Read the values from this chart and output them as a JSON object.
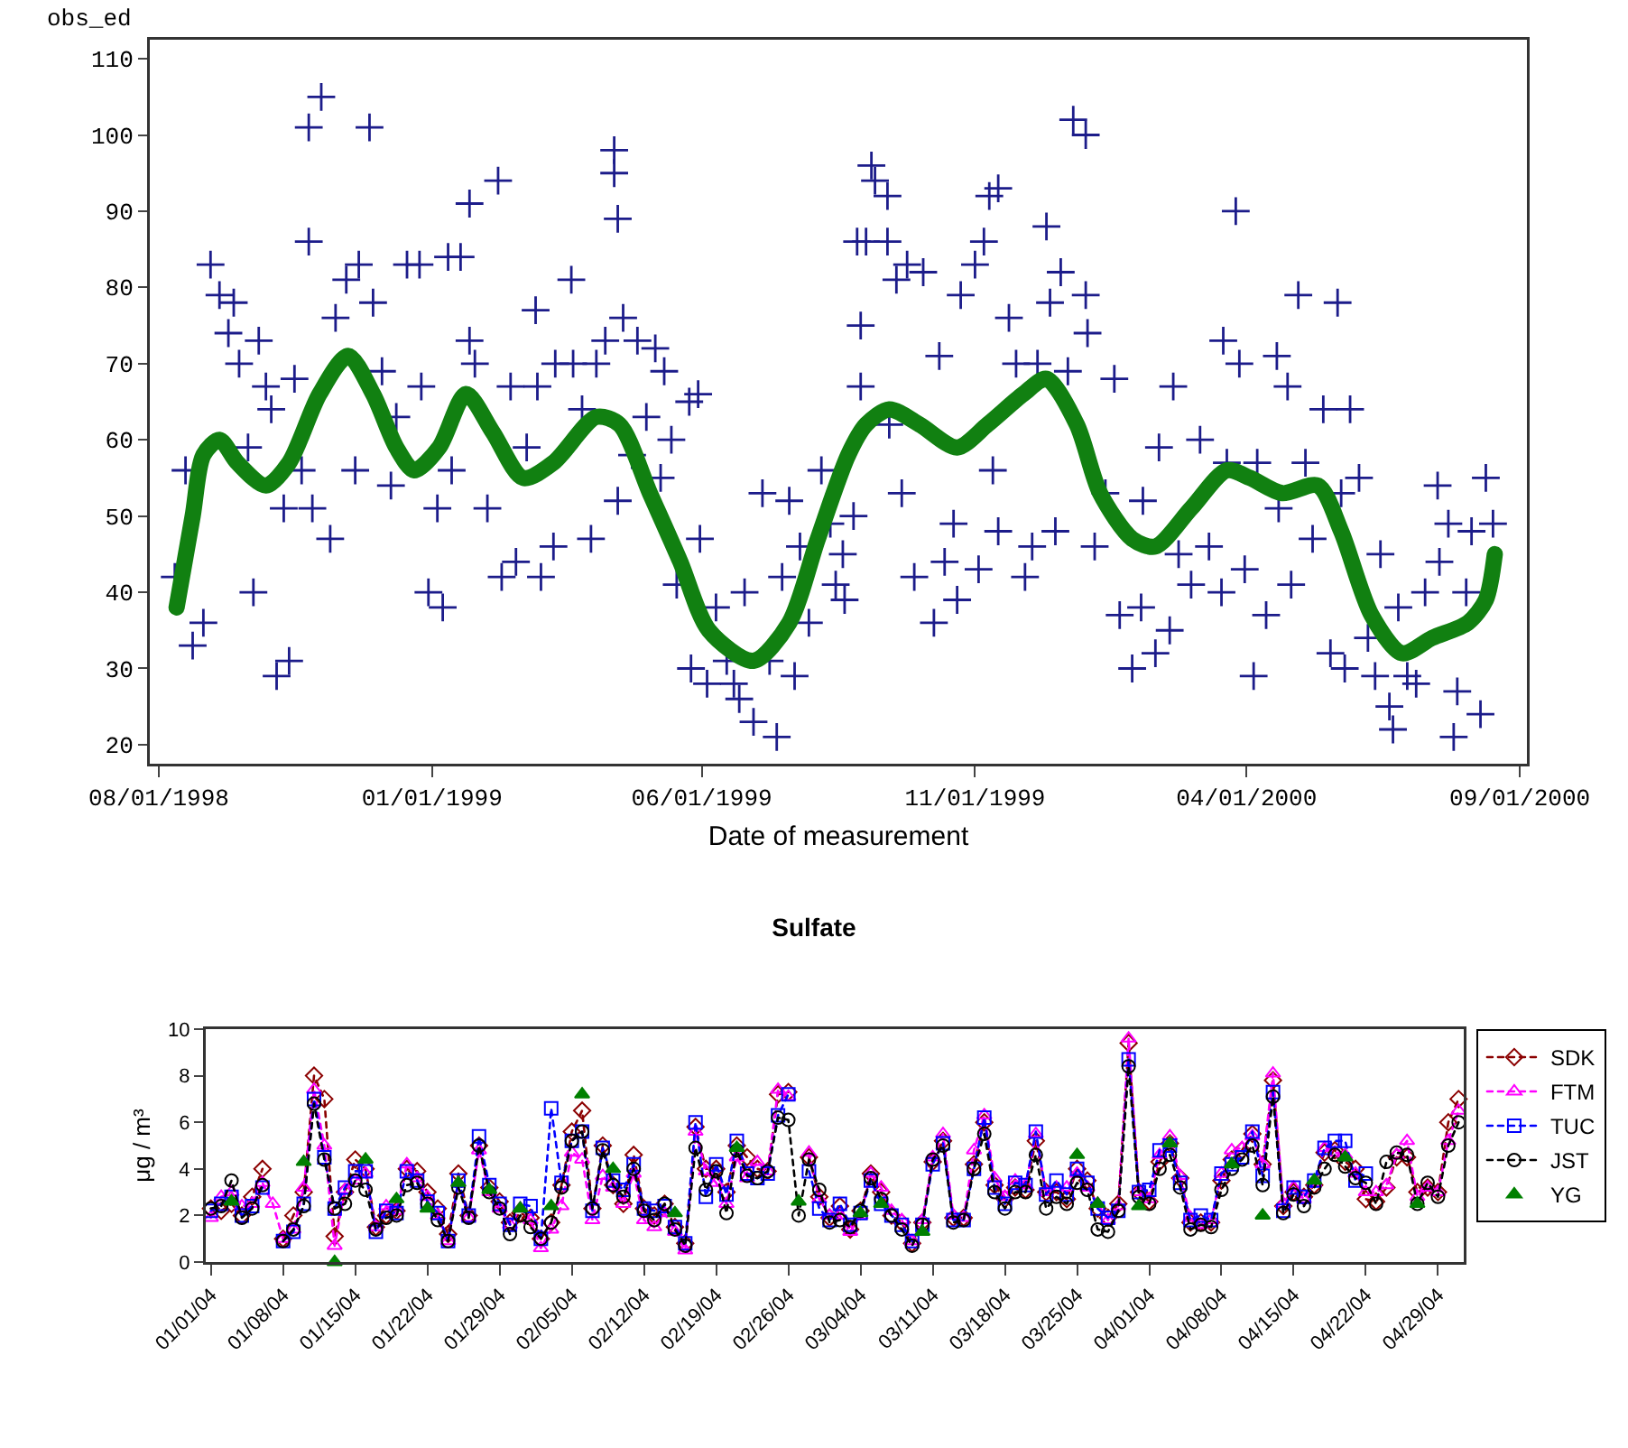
{
  "chart_data": [
    {
      "type": "scatter",
      "xlabel": "Date of measurement",
      "ylabel": "obs_ed",
      "xlim": [
        "1998-07-27",
        "2000-09-05"
      ],
      "ylim": [
        17.5,
        112.5
      ],
      "xticks": [
        {
          "value": "1998-08-01",
          "label": "08/01/1998"
        },
        {
          "value": "1999-01-01",
          "label": "01/01/1999"
        },
        {
          "value": "1999-06-01",
          "label": "06/01/1999"
        },
        {
          "value": "1999-11-01",
          "label": "11/01/1999"
        },
        {
          "value": "2000-04-01",
          "label": "04/01/2000"
        },
        {
          "value": "2000-09-01",
          "label": "09/01/2000"
        }
      ],
      "yticks": [
        20,
        30,
        40,
        50,
        60,
        70,
        80,
        90,
        100,
        110
      ],
      "grid": false,
      "legend": false,
      "series": [
        {
          "color": "#1c1c8a",
          "marker": "cross",
          "x": [
            "1998-08-10",
            "1998-08-16",
            "1998-08-20",
            "1998-08-26",
            "1998-08-30",
            "1998-09-04",
            "1998-09-09",
            "1998-09-12",
            "1998-09-15",
            "1998-09-20",
            "1998-09-23",
            "1998-09-26",
            "1998-09-30",
            "1998-10-03",
            "1998-10-06",
            "1998-10-10",
            "1998-10-13",
            "1998-10-16",
            "1998-10-20",
            "1998-10-24",
            "1998-10-24",
            "1998-10-26",
            "1998-10-31",
            "1998-11-05",
            "1998-11-08",
            "1998-11-14",
            "1998-11-19",
            "1998-11-21",
            "1998-11-27",
            "1998-11-29",
            "1998-12-04",
            "1998-12-09",
            "1998-12-12",
            "1998-12-18",
            "1998-12-25",
            "1998-12-26",
            "1998-12-30",
            "1999-01-04",
            "1999-01-07",
            "1999-01-10",
            "1999-01-12",
            "1999-01-17",
            "1999-01-22",
            "1999-01-22",
            "1999-01-25",
            "1999-02-01",
            "1999-02-07",
            "1999-02-09",
            "1999-02-14",
            "1999-02-17",
            "1999-02-23",
            "1999-02-28",
            "1999-03-01",
            "1999-03-03",
            "1999-03-10",
            "1999-03-11",
            "1999-03-20",
            "1999-03-21",
            "1999-03-26",
            "1999-03-31",
            "1999-04-03",
            "1999-04-08",
            "1999-04-13",
            "1999-04-13",
            "1999-04-15",
            "1999-04-15",
            "1999-04-18",
            "1999-04-23",
            "1999-04-26",
            "1999-05-01",
            "1999-05-06",
            "1999-05-09",
            "1999-05-11",
            "1999-05-15",
            "1999-05-18",
            "1999-05-25",
            "1999-05-26",
            "1999-05-30",
            "1999-05-31",
            "1999-06-04",
            "1999-06-09",
            "1999-06-15",
            "1999-06-19",
            "1999-06-22",
            "1999-06-25",
            "1999-06-30",
            "1999-07-05",
            "1999-07-09",
            "1999-07-13",
            "1999-07-16",
            "1999-07-20",
            "1999-07-23",
            "1999-07-26",
            "1999-07-31",
            "1999-08-07",
            "1999-08-12",
            "1999-08-15",
            "1999-08-19",
            "1999-08-20",
            "1999-08-25",
            "1999-08-27",
            "1999-08-29",
            "1999-08-29",
            "1999-09-01",
            "1999-09-04",
            "1999-09-06",
            "1999-09-13",
            "1999-09-13",
            "1999-09-14",
            "1999-09-18",
            "1999-09-21",
            "1999-09-24",
            "1999-09-28",
            "1999-10-03",
            "1999-10-09",
            "1999-10-12",
            "1999-10-15",
            "1999-10-20",
            "1999-10-22",
            "1999-10-24",
            "1999-11-01",
            "1999-11-03",
            "1999-11-06",
            "1999-11-09",
            "1999-11-11",
            "1999-11-14",
            "1999-11-14",
            "1999-11-20",
            "1999-11-24",
            "1999-11-29",
            "1999-12-03",
            "1999-12-06",
            "1999-12-11",
            "1999-12-13",
            "1999-12-16",
            "1999-12-19",
            "1999-12-23",
            "1999-12-26",
            "2000-01-02",
            "2000-01-02",
            "2000-01-03",
            "2000-01-07",
            "2000-01-13",
            "2000-01-18",
            "2000-01-21",
            "2000-01-28",
            "2000-02-02",
            "2000-02-03",
            "2000-02-10",
            "2000-02-12",
            "2000-02-18",
            "2000-02-20",
            "2000-02-23",
            "2000-03-01",
            "2000-03-06",
            "2000-03-11",
            "2000-03-18",
            "2000-03-19",
            "2000-03-21",
            "2000-03-26",
            "2000-03-28",
            "2000-03-31",
            "2000-04-05",
            "2000-04-07",
            "2000-04-12",
            "2000-04-18",
            "2000-04-19",
            "2000-04-24",
            "2000-04-26",
            "2000-04-30",
            "2000-05-04",
            "2000-05-08",
            "2000-05-14",
            "2000-05-18",
            "2000-05-22",
            "2000-05-24",
            "2000-05-26",
            "2000-05-29",
            "2000-06-03",
            "2000-06-08",
            "2000-06-12",
            "2000-06-15",
            "2000-06-20",
            "2000-06-22",
            "2000-06-25",
            "2000-06-30",
            "2000-07-05",
            "2000-07-10",
            "2000-07-17",
            "2000-07-18",
            "2000-07-23",
            "2000-07-26",
            "2000-07-28",
            "2000-08-02",
            "2000-08-05",
            "2000-08-10",
            "2000-08-13",
            "2000-08-17"
          ],
          "values": [
            42,
            56,
            33,
            36,
            83,
            79,
            74,
            78,
            70,
            59,
            40,
            73,
            67,
            64,
            29,
            51,
            31,
            68,
            56,
            86,
            101,
            51,
            105,
            47,
            76,
            81,
            56,
            83,
            101,
            78,
            69,
            54,
            63,
            83,
            83,
            67,
            40,
            51,
            38,
            84,
            56,
            84,
            91,
            73,
            70,
            51,
            94,
            42,
            67,
            44,
            59,
            77,
            67,
            42,
            46,
            70,
            81,
            70,
            64,
            47,
            70,
            73,
            98,
            95,
            89,
            52,
            76,
            58,
            73,
            63,
            72,
            55,
            69,
            60,
            41,
            65,
            30,
            66,
            47,
            28,
            38,
            31,
            28,
            26,
            40,
            23,
            53,
            31,
            21,
            42,
            52,
            29,
            46,
            36,
            56,
            49,
            41,
            45,
            39,
            50,
            86,
            75,
            67,
            86,
            96,
            94,
            92,
            86,
            62,
            81,
            53,
            83,
            42,
            82,
            36,
            71,
            44,
            49,
            39,
            79,
            83,
            43,
            86,
            92,
            56,
            93,
            48,
            76,
            70,
            42,
            46,
            70,
            88,
            78,
            48,
            82,
            69,
            102,
            100,
            79,
            74,
            46,
            53,
            68,
            37,
            30,
            38,
            52,
            32,
            59,
            35,
            67,
            45,
            41,
            60,
            46,
            40,
            73,
            57,
            90,
            70,
            43,
            29,
            57,
            37,
            71,
            51,
            67,
            41,
            79,
            57,
            47,
            64,
            32,
            78,
            53,
            30,
            64,
            55,
            34,
            29,
            45,
            25,
            22,
            38,
            29,
            28,
            40,
            54,
            44,
            49,
            21,
            27,
            40,
            48,
            24,
            55,
            49
          ]
        },
        {
          "type": "line",
          "color": "#118011",
          "marker": "none",
          "line_style": "solid",
          "x": [
            "1998-08-11",
            "1998-08-20",
            "1998-08-26",
            "1998-09-04",
            "1998-09-14",
            "1998-09-30",
            "1998-10-13",
            "1998-10-30",
            "1998-11-15",
            "1998-11-29",
            "1998-12-12",
            "1998-12-22",
            "1999-01-05",
            "1999-01-20",
            "1999-02-04",
            "1999-02-21",
            "1999-03-10",
            "1999-04-03",
            "1999-04-16",
            "1999-05-03",
            "1999-05-20",
            "1999-06-05",
            "1999-06-30",
            "1999-07-20",
            "1999-08-05",
            "1999-08-22",
            "1999-09-01",
            "1999-09-14",
            "1999-10-01",
            "1999-10-22",
            "1999-11-08",
            "1999-11-28",
            "1999-12-11",
            "1999-12-28",
            "2000-01-10",
            "2000-01-28",
            "2000-02-10",
            "2000-03-01",
            "2000-03-21",
            "2000-04-03",
            "2000-04-21",
            "2000-05-11",
            "2000-05-24",
            "2000-06-10",
            "2000-06-27",
            "2000-07-14",
            "2000-08-03",
            "2000-08-13",
            "2000-08-18"
          ],
          "values": [
            38,
            50,
            58,
            60,
            57,
            54,
            57,
            66,
            71,
            66,
            59,
            56,
            59,
            66,
            61,
            55,
            57,
            63,
            62,
            53,
            44,
            35,
            31,
            36,
            47,
            58,
            62,
            64,
            62,
            59,
            62,
            66,
            68,
            62,
            53,
            47,
            46,
            51,
            56,
            55,
            53,
            54,
            48,
            37,
            32,
            34,
            36,
            39,
            45
          ]
        }
      ]
    },
    {
      "type": "line",
      "title": "Sulfate",
      "ylabel": "μg / m³",
      "ylim": [
        0,
        10
      ],
      "yticks": [
        0,
        2,
        4,
        6,
        8,
        10
      ],
      "grid": false,
      "legend": "right",
      "categories": [
        "01/01/04",
        null,
        null,
        null,
        null,
        null,
        null,
        "01/08/04",
        null,
        null,
        null,
        null,
        null,
        null,
        "01/15/04",
        null,
        null,
        null,
        null,
        null,
        null,
        "01/22/04",
        null,
        null,
        null,
        null,
        null,
        null,
        "01/29/04",
        null,
        null,
        null,
        null,
        null,
        null,
        "02/05/04",
        null,
        null,
        null,
        null,
        null,
        null,
        "02/12/04",
        null,
        null,
        null,
        null,
        null,
        null,
        "02/19/04",
        null,
        null,
        null,
        null,
        null,
        null,
        "02/26/04",
        null,
        null,
        null,
        null,
        null,
        null,
        "03/04/04",
        null,
        null,
        null,
        null,
        null,
        null,
        "03/11/04",
        null,
        null,
        null,
        null,
        null,
        null,
        "03/18/04",
        null,
        null,
        null,
        null,
        null,
        null,
        "03/25/04",
        null,
        null,
        null,
        null,
        null,
        null,
        "04/01/04",
        null,
        null,
        null,
        null,
        null,
        null,
        "04/08/04",
        null,
        null,
        null,
        null,
        null,
        null,
        "04/15/04",
        null,
        null,
        null,
        null,
        null,
        null,
        "04/22/04",
        null,
        null,
        null,
        null,
        null,
        null,
        "04/29/04",
        null,
        null
      ],
      "series": [
        {
          "name": "SDK",
          "color": "#8b0000",
          "marker": "diamond",
          "line_style": "dotted",
          "values": [
            2.3,
            2.2,
            2.5,
            2.0,
            2.8,
            4.0,
            null,
            1.0,
            2.0,
            3.0,
            8.0,
            7.0,
            1.1,
            3.0,
            4.4,
            4.0,
            1.5,
            2.0,
            2.2,
            4.0,
            3.9,
            3.0,
            2.3,
            1.2,
            3.8,
            2.0,
            5.0,
            3.2,
            2.6,
            1.7,
            2.1,
            1.9,
            1.0,
            1.7,
            3.3,
            5.6,
            6.5,
            2.3,
            5.0,
            3.3,
            2.5,
            4.6,
            2.3,
            2.0,
            2.5,
            1.5,
            0.8,
            5.8,
            4.0,
            4.0,
            3.0,
            5.0,
            4.5,
            4.0,
            3.9,
            7.2,
            7.3,
            null,
            4.5,
            2.8,
            1.9,
            2.4,
            1.4,
            2.2,
            3.8,
            3.0,
            2.0,
            1.7,
            0.8,
            1.7,
            4.3,
            5.2,
            1.9,
            1.9,
            4.2,
            6.0,
            3.3,
            2.7,
            3.2,
            3.1,
            5.2,
            3.0,
            3.0,
            2.7,
            4.0,
            3.5,
            2.3,
            1.9,
            2.5,
            9.4,
            3.0,
            2.6,
            4.3,
            5.1,
            3.6,
            1.7,
            1.7,
            1.7,
            3.5,
            4.4,
            4.8,
            5.5,
            4.2,
            7.8,
            2.4,
            3.0,
            2.8,
            3.3,
            4.7,
            4.8,
            4.3,
            4.0,
            2.7,
            2.6,
            3.2,
            4.5,
            4.5,
            3.0,
            3.2,
            3.0,
            6.0,
            7.0
          ]
        },
        {
          "name": "FTM",
          "color": "#ff00ff",
          "marker": "triangle",
          "line_style": "dotted",
          "values": [
            1.9,
            2.8,
            3.0,
            2.4,
            2.5,
            3.4,
            2.5,
            1.0,
            1.4,
            3.2,
            7.4,
            5.0,
            0.7,
            3.1,
            3.5,
            3.8,
            1.5,
            2.4,
            2.2,
            4.2,
            3.6,
            2.8,
            2.0,
            0.9,
            3.4,
            1.9,
            4.8,
            3.0,
            2.3,
            1.6,
            2.3,
            1.8,
            0.6,
            1.4,
            2.4,
            4.7,
            4.4,
            1.8,
            3.7,
            3.2,
            2.5,
            3.8,
            1.8,
            1.5,
            2.1,
            1.3,
            0.5,
            5.6,
            3.9,
            3.4,
            2.5,
            4.5,
            3.6,
            4.3,
            3.9,
            7.4,
            7.1,
            null,
            4.7,
            2.7,
            2.0,
            2.0,
            1.3,
            2.0,
            3.8,
            3.2,
            2.2,
            1.8,
            0.9,
            1.8,
            4.5,
            5.5,
            2.0,
            1.9,
            4.8,
            6.3,
            3.6,
            2.8,
            3.5,
            3.3,
            5.5,
            3.0,
            3.2,
            3.2,
            3.8,
            3.2,
            2.5,
            1.8,
            2.4,
            9.6,
            3.0,
            2.7,
            4.6,
            5.4,
            3.7,
            1.9,
            1.6,
            1.8,
            3.8,
            4.8,
            4.9,
            5.4,
            4.2,
            8.1,
            2.5,
            3.2,
            2.7,
            3.4,
            4.9,
            4.7,
            4.6,
            3.8,
            3.0,
            3.0,
            3.3,
            4.6,
            5.2,
            2.8,
            3.2,
            3.0,
            5.2,
            6.5
          ]
        },
        {
          "name": "TUC",
          "color": "#0000ff",
          "marker": "square",
          "line_style": "dotted",
          "values": [
            2.2,
            2.5,
            2.8,
            2.0,
            2.4,
            3.2,
            null,
            0.9,
            1.3,
            2.5,
            7.0,
            4.5,
            2.3,
            3.2,
            3.9,
            3.9,
            1.3,
            2.2,
            2.1,
            3.9,
            3.5,
            2.6,
            2.1,
            0.9,
            3.5,
            2.0,
            5.4,
            3.3,
            2.5,
            1.6,
            2.5,
            2.4,
            1.0,
            6.6,
            3.4,
            5.2,
            5.6,
            2.2,
            4.9,
            3.5,
            3.1,
            4.2,
            2.3,
            2.2,
            2.4,
            1.5,
            0.8,
            6.0,
            2.8,
            4.2,
            2.9,
            5.2,
            3.8,
            3.6,
            3.8,
            6.3,
            7.2,
            null,
            3.9,
            2.3,
            1.8,
            2.5,
            1.6,
            2.1,
            3.5,
            2.5,
            2.0,
            1.6,
            0.9,
            1.6,
            4.2,
            5.1,
            1.8,
            1.8,
            4.0,
            6.2,
            3.2,
            2.5,
            3.4,
            3.3,
            5.6,
            2.9,
            3.5,
            2.9,
            4.0,
            3.4,
            2.3,
            1.9,
            2.2,
            8.7,
            3.0,
            3.1,
            4.8,
            5.0,
            3.4,
            1.8,
            2.0,
            1.8,
            3.8,
            4.2,
            4.5,
            5.6,
            3.7,
            7.3,
            2.2,
            3.2,
            2.8,
            3.5,
            4.9,
            5.2,
            5.2,
            3.5,
            3.8,
            null,
            null,
            null,
            null,
            null,
            null,
            null,
            null,
            null
          ]
        },
        {
          "name": "JST",
          "color": "#000000",
          "marker": "circle",
          "line_style": "dotted",
          "values": [
            2.3,
            2.4,
            3.5,
            1.9,
            2.3,
            3.3,
            null,
            0.9,
            1.4,
            2.4,
            6.8,
            4.4,
            2.3,
            2.5,
            3.5,
            3.1,
            1.4,
            1.9,
            2.0,
            3.3,
            3.4,
            2.5,
            1.8,
            0.9,
            3.2,
            1.9,
            5.0,
            3.0,
            2.3,
            1.2,
            2.0,
            1.5,
            1.0,
            1.7,
            3.2,
            5.2,
            5.6,
            2.3,
            4.8,
            3.3,
            2.8,
            4.0,
            2.2,
            1.8,
            2.5,
            1.4,
            0.7,
            4.9,
            3.1,
            3.9,
            2.1,
            4.8,
            3.7,
            3.6,
            3.9,
            6.2,
            6.1,
            2.0,
            4.4,
            3.1,
            1.7,
            1.8,
            1.5,
            2.2,
            3.6,
            2.7,
            2.0,
            1.4,
            0.7,
            1.6,
            4.4,
            5.0,
            1.7,
            1.8,
            4.0,
            5.5,
            3.0,
            2.3,
            3.0,
            3.0,
            4.6,
            2.3,
            2.8,
            2.5,
            3.4,
            3.1,
            1.4,
            1.3,
            2.2,
            8.4,
            2.8,
            2.5,
            4.0,
            4.6,
            3.2,
            1.4,
            1.6,
            1.5,
            3.1,
            4.0,
            4.4,
            5.0,
            3.3,
            7.1,
            2.1,
            2.9,
            2.4,
            3.2,
            4.0,
            4.6,
            4.1,
            3.6,
            3.4,
            2.5,
            4.3,
            4.7,
            4.6,
            2.5,
            3.4,
            2.8,
            5.0,
            6.0
          ]
        },
        {
          "name": "YG",
          "type": "scatter",
          "color": "#008000",
          "marker": "triangle",
          "values": [
            null,
            null,
            2.6,
            null,
            null,
            null,
            null,
            null,
            null,
            4.3,
            null,
            null,
            0,
            null,
            null,
            4.4,
            null,
            null,
            2.7,
            null,
            null,
            2.3,
            null,
            null,
            3.4,
            null,
            null,
            3.1,
            null,
            null,
            2.3,
            null,
            null,
            2.4,
            null,
            null,
            7.2,
            null,
            null,
            4.0,
            null,
            null,
            null,
            null,
            null,
            2.1,
            null,
            null,
            null,
            null,
            null,
            4.9,
            null,
            null,
            null,
            null,
            null,
            2.6,
            null,
            null,
            null,
            null,
            null,
            2.1,
            null,
            2.5,
            null,
            null,
            null,
            1.3,
            null,
            null,
            null,
            null,
            null,
            null,
            null,
            null,
            null,
            null,
            null,
            null,
            null,
            null,
            4.6,
            null,
            2.5,
            null,
            null,
            null,
            2.4,
            null,
            null,
            5.1,
            null,
            null,
            null,
            null,
            null,
            4.2,
            null,
            null,
            2.0,
            null,
            null,
            null,
            null,
            3.5,
            null,
            null,
            4.5,
            null,
            null,
            null,
            null,
            null,
            null,
            2.5,
            null,
            null,
            null,
            null
          ]
        }
      ]
    }
  ]
}
